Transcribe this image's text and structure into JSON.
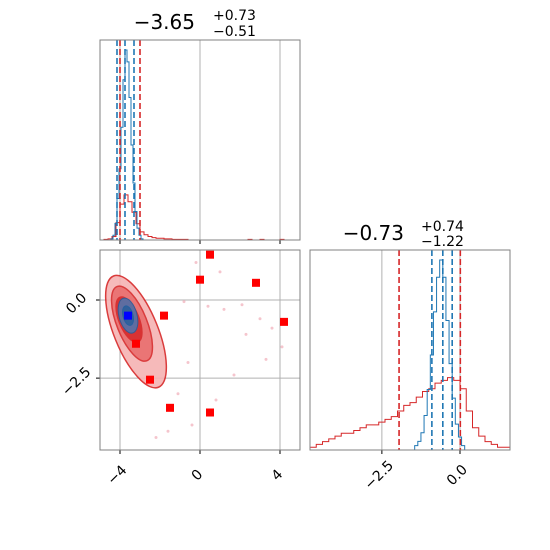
{
  "colors": {
    "red": "#d62728",
    "red_light": "#f4a6a6",
    "blue": "#1f77b4",
    "marker_red": "#ff0000",
    "marker_blue": "#0000ff",
    "grid": "#b0b0b0",
    "frame": "#808080"
  },
  "chart_data": {
    "type": "corner",
    "parameters": [
      "param_1",
      "param_2"
    ],
    "panel_titles": [
      {
        "main": "−3.65",
        "sup": "+0.73",
        "sub": "−0.51"
      },
      {
        "main": "−0.73",
        "sup": "+0.74",
        "sub": "−1.22"
      }
    ],
    "axis_ranges": {
      "param_1": [
        -5.0,
        5.0
      ],
      "param_2": [
        -4.8,
        1.6
      ]
    },
    "ticks": {
      "param_1": {
        "values": [
          -4,
          0,
          4
        ],
        "labels": [
          "−4",
          "0",
          "4"
        ]
      },
      "param_2": {
        "values": [
          -2.5,
          0.0
        ],
        "labels": [
          "−2.5",
          "0.0"
        ]
      }
    },
    "grid": true,
    "marginal_1": {
      "red_quantiles": [
        -4.0,
        -3.0
      ],
      "blue_quantiles": [
        -4.15,
        -3.75,
        -3.3
      ],
      "red_hist": [
        [
          -4.7,
          1
        ],
        [
          -4.5,
          2
        ],
        [
          -4.3,
          6
        ],
        [
          -4.1,
          30
        ],
        [
          -3.9,
          62
        ],
        [
          -3.7,
          78
        ],
        [
          -3.5,
          66
        ],
        [
          -3.3,
          48
        ],
        [
          -3.1,
          28
        ],
        [
          -2.9,
          14
        ],
        [
          -2.7,
          9
        ],
        [
          -2.5,
          6
        ],
        [
          -2.3,
          4
        ],
        [
          -2.1,
          3
        ],
        [
          -1.9,
          3
        ],
        [
          -1.7,
          2
        ],
        [
          -1.5,
          2
        ],
        [
          -1.3,
          1
        ],
        [
          -1.1,
          1
        ],
        [
          -0.9,
          1
        ],
        [
          -0.7,
          1
        ],
        [
          2.5,
          1
        ],
        [
          3.1,
          1
        ],
        [
          4.1,
          1
        ]
      ],
      "blue_hist": [
        [
          -4.4,
          1
        ],
        [
          -4.3,
          4
        ],
        [
          -4.2,
          14
        ],
        [
          -4.1,
          35
        ],
        [
          -4.0,
          60
        ],
        [
          -3.9,
          95
        ],
        [
          -3.8,
          135
        ],
        [
          -3.7,
          160
        ],
        [
          -3.6,
          150
        ],
        [
          -3.5,
          120
        ],
        [
          -3.4,
          80
        ],
        [
          -3.3,
          48
        ],
        [
          -3.2,
          24
        ],
        [
          -3.1,
          10
        ],
        [
          -3.0,
          4
        ],
        [
          -2.9,
          1
        ]
      ]
    },
    "marginal_2": {
      "red_quantiles": [
        -1.95,
        0.01
      ],
      "blue_quantiles": [
        -0.9,
        -0.55,
        -0.25
      ],
      "red_hist": [
        [
          -4.7,
          1
        ],
        [
          -4.5,
          2
        ],
        [
          -4.3,
          3
        ],
        [
          -4.1,
          4
        ],
        [
          -3.9,
          5
        ],
        [
          -3.7,
          6
        ],
        [
          -3.5,
          6
        ],
        [
          -3.3,
          7
        ],
        [
          -3.1,
          8
        ],
        [
          -2.9,
          9
        ],
        [
          -2.7,
          9
        ],
        [
          -2.5,
          10
        ],
        [
          -2.3,
          11
        ],
        [
          -2.1,
          12
        ],
        [
          -1.9,
          14
        ],
        [
          -1.7,
          16
        ],
        [
          -1.5,
          17
        ],
        [
          -1.3,
          19
        ],
        [
          -1.1,
          21
        ],
        [
          -0.9,
          22
        ],
        [
          -0.7,
          24
        ],
        [
          -0.5,
          25
        ],
        [
          -0.3,
          26
        ],
        [
          -0.1,
          25
        ],
        [
          0.1,
          22
        ],
        [
          0.3,
          14
        ],
        [
          0.5,
          8
        ],
        [
          0.7,
          5
        ],
        [
          0.9,
          3
        ],
        [
          1.1,
          2
        ],
        [
          1.3,
          1
        ],
        [
          1.5,
          1
        ]
      ],
      "blue_hist": [
        [
          -1.4,
          1
        ],
        [
          -1.3,
          2
        ],
        [
          -1.2,
          4
        ],
        [
          -1.1,
          8
        ],
        [
          -1.0,
          14
        ],
        [
          -0.9,
          22
        ],
        [
          -0.8,
          32
        ],
        [
          -0.7,
          40
        ],
        [
          -0.6,
          44
        ],
        [
          -0.5,
          40
        ],
        [
          -0.4,
          30
        ],
        [
          -0.3,
          20
        ],
        [
          -0.2,
          12
        ],
        [
          -0.1,
          6
        ],
        [
          0.0,
          3
        ],
        [
          0.1,
          1
        ]
      ]
    },
    "joint": {
      "contour_center": [
        -3.7,
        -0.5
      ],
      "red_squares": [
        [
          0.5,
          1.45
        ],
        [
          0.0,
          0.65
        ],
        [
          2.8,
          0.55
        ],
        [
          -1.8,
          -0.5
        ],
        [
          4.2,
          -0.7
        ],
        [
          -3.2,
          -1.4
        ],
        [
          -2.5,
          -2.55
        ],
        [
          -1.5,
          -3.45
        ],
        [
          0.5,
          -3.6
        ]
      ],
      "blue_square": [
        -3.6,
        -0.5
      ],
      "outlier_points": [
        [
          -0.8,
          -0.05
        ],
        [
          0.4,
          -0.2
        ],
        [
          1.2,
          -0.3
        ],
        [
          2.1,
          -0.15
        ],
        [
          3.0,
          -0.6
        ],
        [
          3.6,
          -0.9
        ],
        [
          4.1,
          -1.5
        ],
        [
          3.3,
          -1.9
        ],
        [
          1.7,
          -2.4
        ],
        [
          -0.6,
          -2.0
        ],
        [
          -1.6,
          -4.2
        ],
        [
          -2.2,
          -4.4
        ],
        [
          -0.4,
          -4.0
        ],
        [
          0.8,
          -3.2
        ],
        [
          2.3,
          -1.1
        ],
        [
          -0.2,
          1.2
        ],
        [
          1.0,
          0.9
        ],
        [
          -1.1,
          -3.0
        ]
      ]
    }
  }
}
